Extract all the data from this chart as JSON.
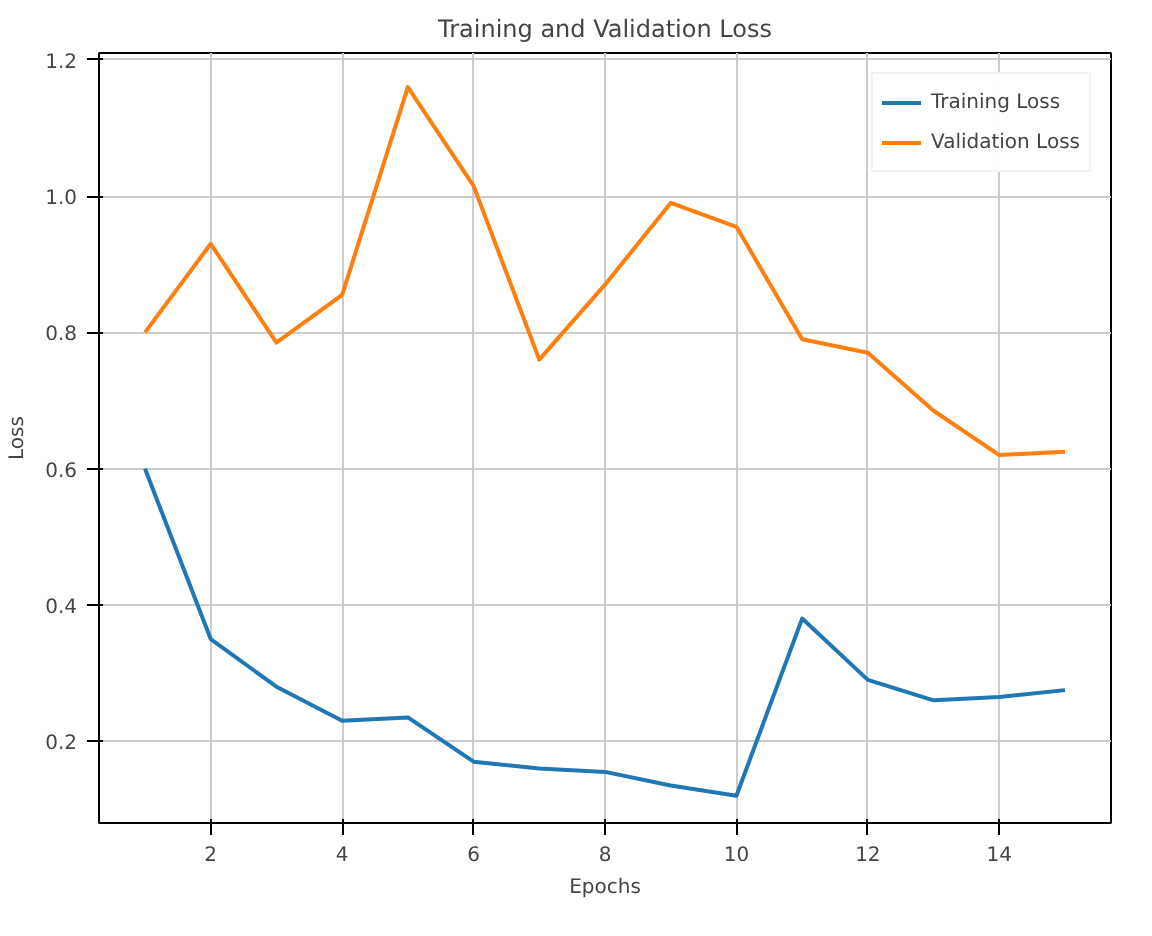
{
  "chart_data": {
    "type": "line",
    "title": "Training and Validation Loss",
    "xlabel": "Epochs",
    "ylabel": "Loss",
    "x": [
      1,
      2,
      3,
      4,
      5,
      6,
      7,
      8,
      9,
      10,
      11,
      12,
      13,
      14,
      15
    ],
    "series": [
      {
        "name": "Training Loss",
        "color": "#1f77b4",
        "values": [
          0.6,
          0.35,
          0.28,
          0.23,
          0.235,
          0.17,
          0.16,
          0.155,
          0.135,
          0.12,
          0.38,
          0.29,
          0.26,
          0.265,
          0.275
        ]
      },
      {
        "name": "Validation Loss",
        "color": "#ff7f0e",
        "values": [
          0.8,
          0.93,
          0.785,
          0.855,
          1.16,
          1.015,
          0.76,
          0.87,
          0.99,
          0.955,
          0.79,
          0.77,
          0.685,
          0.62,
          0.625
        ]
      }
    ],
    "xlim": [
      0.3,
      15.7
    ],
    "ylim": [
      0.08,
      1.21
    ],
    "xticks": [
      2,
      4,
      6,
      8,
      10,
      12,
      14
    ],
    "yticks": [
      0.2,
      0.4,
      0.6,
      0.8,
      {
        "value": 1,
        "label": "1.0"
      },
      1.2
    ],
    "grid": true,
    "legend": "top right"
  }
}
